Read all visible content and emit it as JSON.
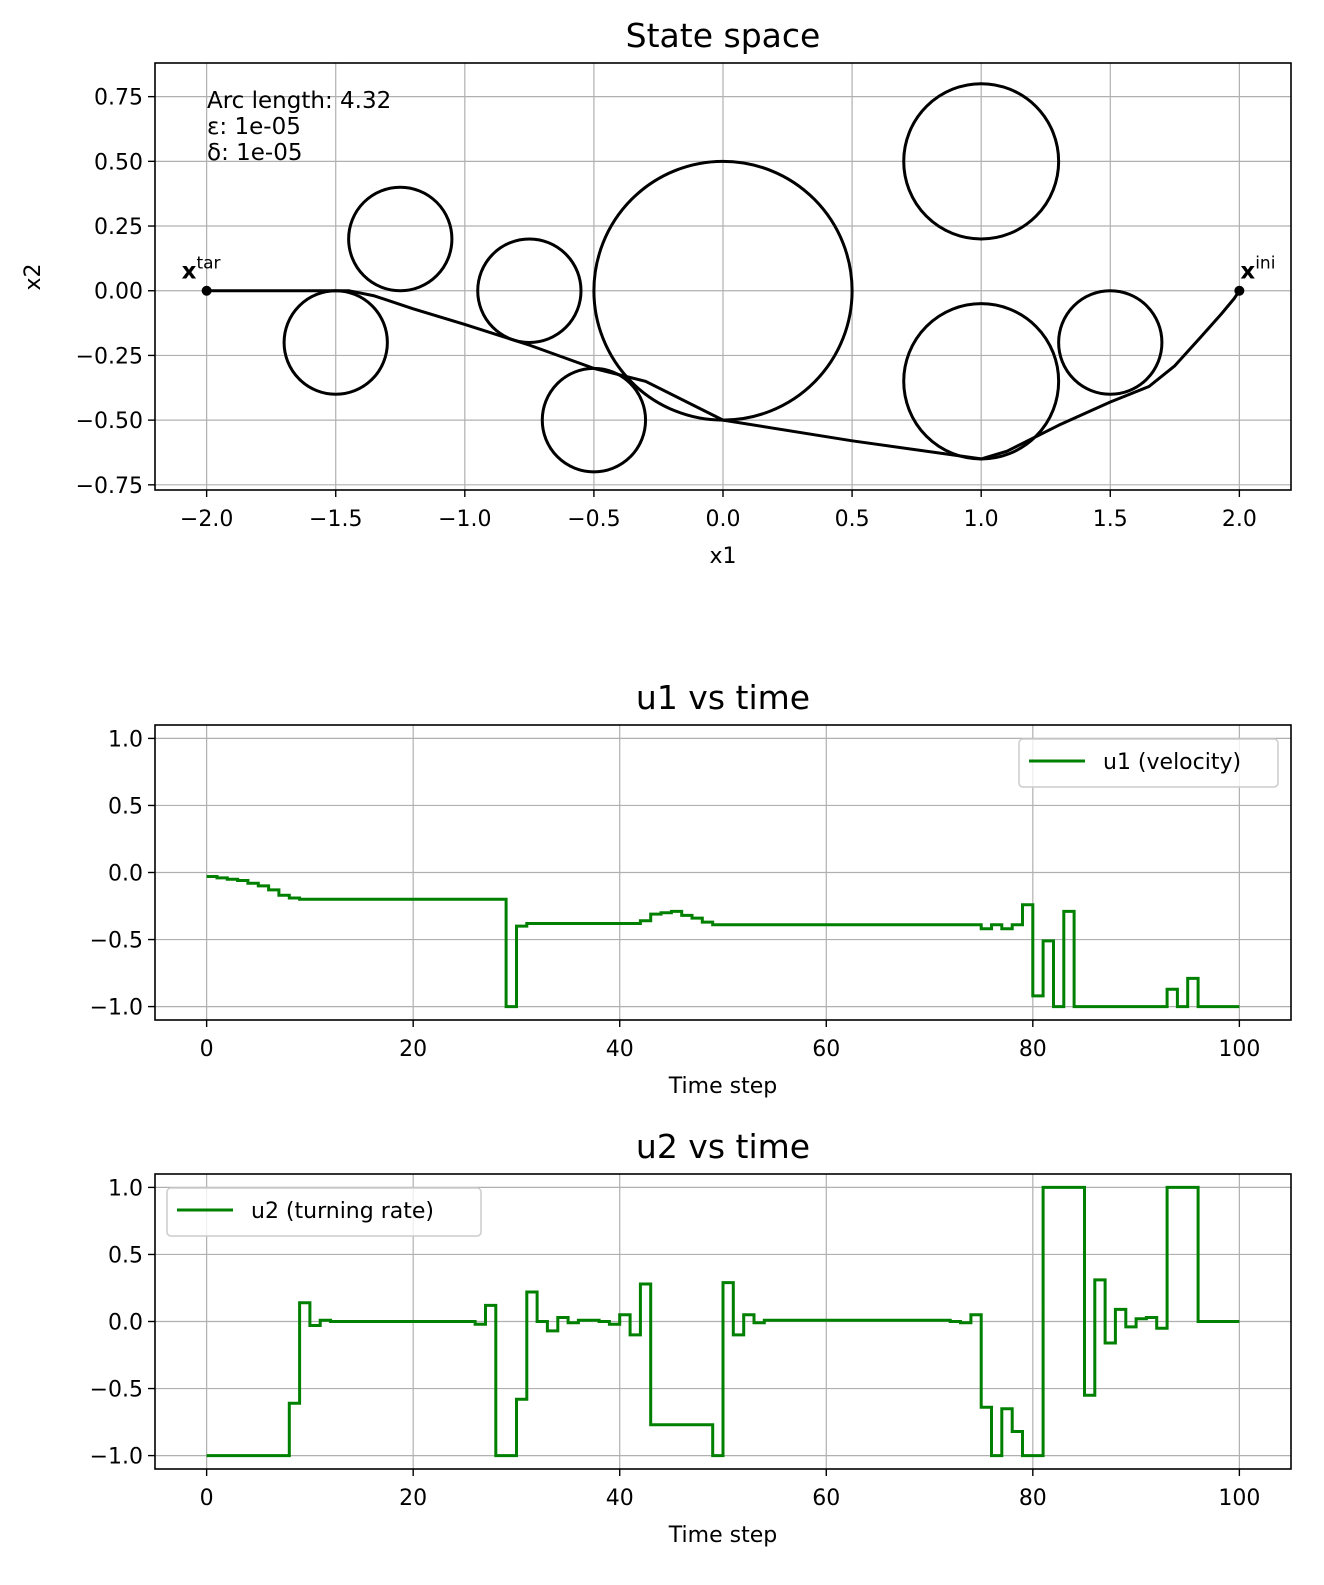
{
  "chart_data": [
    {
      "type": "line",
      "title": "State space",
      "xlabel": "x1",
      "ylabel": "x2",
      "xlim": [
        -2.2,
        2.2
      ],
      "ylim": [
        -0.77,
        0.88
      ],
      "xticks": [
        -2.0,
        -1.5,
        -1.0,
        -0.5,
        0.0,
        0.5,
        1.0,
        1.5,
        2.0
      ],
      "xtick_labels": [
        "−2.0",
        "−1.5",
        "−1.0",
        "−0.5",
        "0.0",
        "0.5",
        "1.0",
        "1.5",
        "2.0"
      ],
      "yticks": [
        0.75,
        0.5,
        0.25,
        0.0,
        -0.25,
        -0.5,
        -0.75
      ],
      "ytick_labels": [
        "0.75",
        "0.50",
        "0.25",
        "0.00",
        "−0.25",
        "−0.50",
        "−0.75"
      ],
      "grid": true,
      "annotations": [
        "Arc length: 4.32",
        "ε: 1e-05",
        "δ: 1e-05"
      ],
      "obstacles": [
        {
          "cx": 0.0,
          "cy": 0.0,
          "r": 0.5
        },
        {
          "cx": 1.0,
          "cy": 0.5,
          "r": 0.3
        },
        {
          "cx": 1.0,
          "cy": -0.35,
          "r": 0.3
        },
        {
          "cx": 1.5,
          "cy": -0.2,
          "r": 0.2
        },
        {
          "cx": -0.5,
          "cy": -0.5,
          "r": 0.2
        },
        {
          "cx": -0.75,
          "cy": 0.0,
          "r": 0.2
        },
        {
          "cx": -1.25,
          "cy": 0.2,
          "r": 0.2
        },
        {
          "cx": -1.5,
          "cy": -0.2,
          "r": 0.2
        }
      ],
      "trajectory": {
        "x": [
          2.0,
          1.98,
          1.93,
          1.85,
          1.75,
          1.65,
          1.5,
          1.3,
          1.1,
          1.0,
          0.5,
          0.0,
          -0.3,
          -0.5,
          -0.75,
          -1.0,
          -1.2,
          -1.35,
          -1.45,
          -1.5,
          -1.6,
          -1.8,
          -2.0
        ],
        "y": [
          0.0,
          -0.03,
          -0.09,
          -0.18,
          -0.29,
          -0.37,
          -0.43,
          -0.52,
          -0.62,
          -0.65,
          -0.58,
          -0.5,
          -0.35,
          -0.3,
          -0.21,
          -0.13,
          -0.07,
          -0.02,
          0.0,
          0.0,
          0.0,
          0.0,
          0.0
        ]
      },
      "points": [
        {
          "label_base": "x",
          "label_sup": "ini",
          "x": 2.0,
          "y": 0.0
        },
        {
          "label_base": "x",
          "label_sup": "tar",
          "x": -2.0,
          "y": 0.0
        }
      ]
    },
    {
      "type": "line",
      "title": "u1 vs time",
      "xlabel": "Time step",
      "ylabel": "",
      "xlim": [
        -5,
        105
      ],
      "ylim": [
        -1.1,
        1.1
      ],
      "xticks": [
        0,
        20,
        40,
        60,
        80,
        100
      ],
      "xtick_labels": [
        "0",
        "20",
        "40",
        "60",
        "80",
        "100"
      ],
      "yticks": [
        1.0,
        0.5,
        0.0,
        -0.5,
        -1.0
      ],
      "ytick_labels": [
        "1.0",
        "0.5",
        "0.0",
        "−0.5",
        "−1.0"
      ],
      "grid": true,
      "legend": "top-right",
      "series": [
        {
          "name": "u1 (velocity)",
          "color": "#008000",
          "step": true,
          "x": [
            0,
            1,
            2,
            3,
            4,
            5,
            6,
            7,
            8,
            9,
            10,
            28,
            29,
            30,
            31,
            42,
            43,
            44,
            45,
            46,
            47,
            48,
            49,
            75,
            76,
            77,
            78,
            79,
            80,
            81,
            82,
            83,
            84,
            93,
            94,
            95,
            96,
            100
          ],
          "y": [
            -0.03,
            -0.04,
            -0.05,
            -0.06,
            -0.08,
            -0.1,
            -0.13,
            -0.17,
            -0.19,
            -0.2,
            -0.2,
            -0.2,
            -1.0,
            -0.4,
            -0.38,
            -0.36,
            -0.31,
            -0.3,
            -0.29,
            -0.32,
            -0.34,
            -0.37,
            -0.39,
            -0.42,
            -0.39,
            -0.42,
            -0.39,
            -0.24,
            -0.92,
            -0.51,
            -1.0,
            -0.29,
            -1.0,
            -0.87,
            -1.0,
            -0.79,
            -1.0,
            -1.0
          ]
        }
      ]
    },
    {
      "type": "line",
      "title": "u2 vs time",
      "xlabel": "Time step",
      "ylabel": "",
      "xlim": [
        -5,
        105
      ],
      "ylim": [
        -1.1,
        1.1
      ],
      "xticks": [
        0,
        20,
        40,
        60,
        80,
        100
      ],
      "xtick_labels": [
        "0",
        "20",
        "40",
        "60",
        "80",
        "100"
      ],
      "yticks": [
        1.0,
        0.5,
        0.0,
        -0.5,
        -1.0
      ],
      "ytick_labels": [
        "1.0",
        "0.5",
        "0.0",
        "−0.5",
        "−1.0"
      ],
      "grid": true,
      "legend": "top-left",
      "series": [
        {
          "name": "u2 (turning rate)",
          "color": "#008000",
          "step": true,
          "x": [
            0,
            8,
            9,
            10,
            11,
            12,
            25,
            26,
            27,
            28,
            30,
            31,
            32,
            33,
            34,
            35,
            36,
            38,
            39,
            40,
            41,
            42,
            43,
            49,
            50,
            51,
            52,
            53,
            54,
            72,
            73,
            74,
            75,
            76,
            77,
            78,
            79,
            81,
            84,
            85,
            86,
            87,
            88,
            89,
            90,
            91,
            92,
            93,
            96,
            100
          ],
          "y": [
            -1.0,
            -0.61,
            0.14,
            -0.03,
            0.01,
            0.0,
            0.0,
            -0.02,
            0.12,
            -1.0,
            -0.58,
            0.22,
            0.0,
            -0.07,
            0.03,
            -0.01,
            0.01,
            0.0,
            -0.02,
            0.05,
            -0.1,
            0.28,
            -0.77,
            -1.0,
            0.29,
            -0.1,
            0.05,
            -0.01,
            0.01,
            0.0,
            -0.01,
            0.05,
            -0.64,
            -1.0,
            -0.65,
            -0.82,
            -1.0,
            1.0,
            1.0,
            -0.55,
            0.31,
            -0.16,
            0.09,
            -0.04,
            0.02,
            0.03,
            -0.05,
            1.0,
            0.0,
            0.0
          ]
        }
      ]
    }
  ]
}
